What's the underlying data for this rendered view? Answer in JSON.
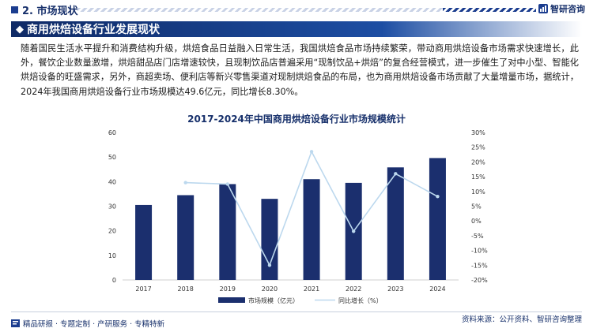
{
  "header": {
    "section_label": "2. 市场现状",
    "logo_text": "智研咨询",
    "accent_color": "#1b3d8f"
  },
  "title": "商用烘焙设备行业发展现状",
  "paragraph": "随着国民生活水平提升和消费结构升级，烘焙食品日益融入日常生活，我国烘焙食品市场持续繁荣，带动商用烘焙设备市场需求快速增长，此外，餐饮企业数量激增，烘焙甜品店门店增速较快，且现制饮品店普遍采用“现制饮品+烘焙”的复合经营模式，进一步催生了对中小型、智能化烘焙设备的旺盛需求，另外，商超卖场、便利店等新兴零售渠道对现制烘焙食品的布局，也为商用烘焙设备市场贡献了大量增量市场，据统计，2024年我国商用烘焙设备行业市场规模达49.6亿元，同比增长8.30%。",
  "chart_data": {
    "type": "bar",
    "title": "2017-2024年中国商用烘焙设备行业市场规模统计",
    "categories": [
      "2017",
      "2018",
      "2019",
      "2020",
      "2021",
      "2022",
      "2023",
      "2024"
    ],
    "series": [
      {
        "name": "市场规模（亿元）",
        "type": "bar",
        "axis": "left",
        "color": "#1b2f6e",
        "values": [
          30.5,
          34.5,
          39.0,
          33.0,
          41.0,
          39.5,
          45.8,
          49.6
        ]
      },
      {
        "name": "同比增长（%）",
        "type": "line",
        "axis": "right",
        "color": "#bcd8ee",
        "values": [
          null,
          13.0,
          12.5,
          -15.0,
          23.5,
          -3.5,
          16.0,
          8.3
        ]
      }
    ],
    "y_left": {
      "min": 0,
      "max": 60,
      "ticks": [
        "0",
        "10",
        "20",
        "30",
        "40",
        "50",
        "60"
      ]
    },
    "y_right": {
      "min": -20,
      "max": 30,
      "ticks": [
        "-20%",
        "-15%",
        "-10%",
        "-5%",
        "0%",
        "5%",
        "10%",
        "15%",
        "20%",
        "25%",
        "30%"
      ]
    },
    "grid": false,
    "legend_position": "bottom"
  },
  "footer": {
    "left_text": "精品研报 · 专题定制 · 产研服务 · 专精特新",
    "source_text": "资料来源：公开资料、智研咨询整理"
  }
}
